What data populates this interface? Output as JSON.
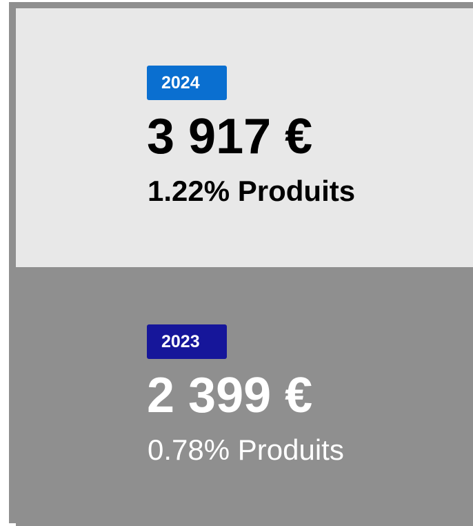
{
  "cards": [
    {
      "year": "2024",
      "amount": "3 917 €",
      "share": "1.22% Produits"
    },
    {
      "year": "2023",
      "amount": "2 399 €",
      "share": "0.78% Produits"
    }
  ]
}
